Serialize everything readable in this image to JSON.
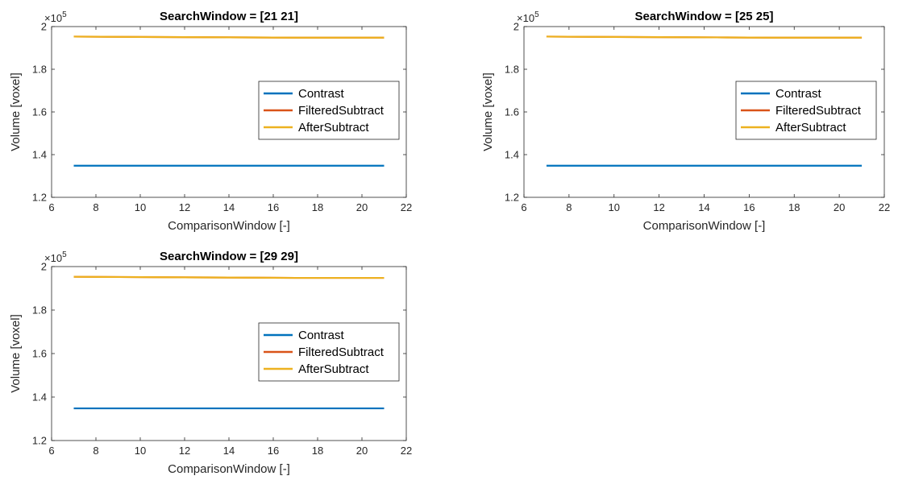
{
  "chart_data": [
    {
      "type": "line",
      "title": "SearchWindow = [21 21]",
      "xlabel": "ComparisonWindow [-]",
      "ylabel": "Volume [voxel]",
      "xlim": [
        6,
        22
      ],
      "ylim": [
        120000,
        200000
      ],
      "xticks": [
        6,
        8,
        10,
        12,
        14,
        16,
        18,
        20,
        22
      ],
      "yticks": [
        120000,
        140000,
        160000,
        180000,
        200000
      ],
      "ytick_labels": [
        "1.2",
        "1.4",
        "1.6",
        "1.8",
        "2"
      ],
      "y_exponent_label": "×10",
      "y_exponent_power": "5",
      "legend_position": "east",
      "grid": false,
      "x": [
        7,
        9,
        11,
        13,
        15,
        17,
        19,
        21
      ],
      "series": [
        {
          "name": "Contrast",
          "color": "#0072BD",
          "values": [
            134800,
            134800,
            134800,
            134800,
            134800,
            134800,
            134800,
            134800
          ]
        },
        {
          "name": "FilteredSubtract",
          "color": "#D95319",
          "values": [
            195300,
            195200,
            195100,
            195000,
            194900,
            194800,
            194800,
            194800
          ]
        },
        {
          "name": "AfterSubtract",
          "color": "#EDB120",
          "values": [
            195300,
            195200,
            195100,
            195000,
            194900,
            194800,
            194800,
            194800
          ]
        }
      ]
    },
    {
      "type": "line",
      "title": "SearchWindow = [25 25]",
      "xlabel": "ComparisonWindow [-]",
      "ylabel": "Volume [voxel]",
      "xlim": [
        6,
        22
      ],
      "ylim": [
        120000,
        200000
      ],
      "xticks": [
        6,
        8,
        10,
        12,
        14,
        16,
        18,
        20,
        22
      ],
      "yticks": [
        120000,
        140000,
        160000,
        180000,
        200000
      ],
      "ytick_labels": [
        "1.2",
        "1.4",
        "1.6",
        "1.8",
        "2"
      ],
      "y_exponent_label": "×10",
      "y_exponent_power": "5",
      "legend_position": "east",
      "grid": false,
      "x": [
        7,
        9,
        11,
        13,
        15,
        17,
        19,
        21
      ],
      "series": [
        {
          "name": "Contrast",
          "color": "#0072BD",
          "values": [
            134800,
            134800,
            134800,
            134800,
            134800,
            134800,
            134800,
            134800
          ]
        },
        {
          "name": "FilteredSubtract",
          "color": "#D95319",
          "values": [
            195300,
            195200,
            195100,
            195000,
            194900,
            194800,
            194800,
            194800
          ]
        },
        {
          "name": "AfterSubtract",
          "color": "#EDB120",
          "values": [
            195300,
            195200,
            195100,
            195000,
            194900,
            194800,
            194800,
            194800
          ]
        }
      ]
    },
    {
      "type": "line",
      "title": "SearchWindow = [29 29]",
      "xlabel": "ComparisonWindow [-]",
      "ylabel": "Volume [voxel]",
      "xlim": [
        6,
        22
      ],
      "ylim": [
        120000,
        200000
      ],
      "xticks": [
        6,
        8,
        10,
        12,
        14,
        16,
        18,
        20,
        22
      ],
      "yticks": [
        120000,
        140000,
        160000,
        180000,
        200000
      ],
      "ytick_labels": [
        "1.2",
        "1.4",
        "1.6",
        "1.8",
        "2"
      ],
      "y_exponent_label": "×10",
      "y_exponent_power": "5",
      "legend_position": "east",
      "grid": false,
      "x": [
        7,
        9,
        11,
        13,
        15,
        17,
        19,
        21
      ],
      "series": [
        {
          "name": "Contrast",
          "color": "#0072BD",
          "values": [
            134800,
            134800,
            134800,
            134800,
            134800,
            134800,
            134800,
            134800
          ]
        },
        {
          "name": "FilteredSubtract",
          "color": "#D95319",
          "values": [
            195300,
            195200,
            195100,
            195000,
            194900,
            194800,
            194800,
            194800
          ]
        },
        {
          "name": "AfterSubtract",
          "color": "#EDB120",
          "values": [
            195300,
            195200,
            195100,
            195000,
            194900,
            194800,
            194800,
            194800
          ]
        }
      ]
    }
  ]
}
